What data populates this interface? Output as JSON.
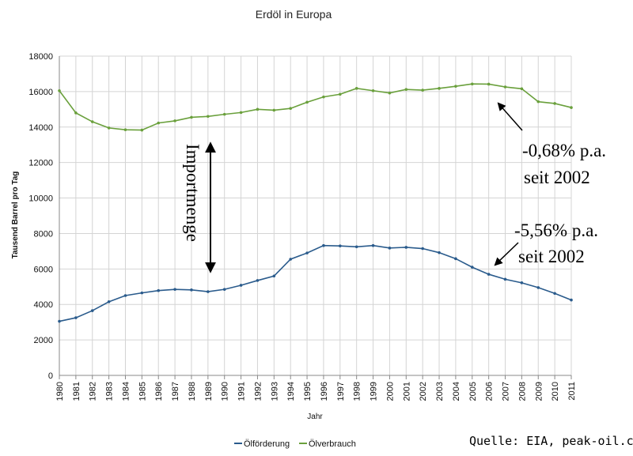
{
  "chart_data": {
    "type": "line",
    "title": "Erdöl in Europa",
    "xlabel": "Jahr",
    "ylabel": "Tausend Barrel pro Tag",
    "ylim": [
      0,
      18000
    ],
    "yticks": [
      0,
      2000,
      4000,
      6000,
      8000,
      10000,
      12000,
      14000,
      16000,
      18000
    ],
    "grid": true,
    "legend_position": "bottom",
    "categories": [
      "1980",
      "1981",
      "1982",
      "1983",
      "1984",
      "1985",
      "1986",
      "1987",
      "1988",
      "1989",
      "1990",
      "1991",
      "1992",
      "1993",
      "1994",
      "1995",
      "1996",
      "1997",
      "1998",
      "1999",
      "2000",
      "2001",
      "2002",
      "2003",
      "2004",
      "2005",
      "2006",
      "2007",
      "2008",
      "2009",
      "2010",
      "2011"
    ],
    "series": [
      {
        "name": "Ölförderung",
        "color": "#2a5b8c",
        "values": [
          3050,
          3250,
          3650,
          4150,
          4500,
          4650,
          4780,
          4850,
          4820,
          4720,
          4850,
          5080,
          5350,
          5600,
          6550,
          6900,
          7320,
          7300,
          7250,
          7320,
          7180,
          7220,
          7150,
          6920,
          6580,
          6100,
          5700,
          5420,
          5220,
          4950,
          4620,
          4250
        ]
      },
      {
        "name": "Ölverbrauch",
        "color": "#6aa03c",
        "values": [
          16050,
          14800,
          14300,
          13950,
          13850,
          13830,
          14230,
          14350,
          14550,
          14600,
          14720,
          14820,
          15000,
          14950,
          15050,
          15400,
          15700,
          15850,
          16180,
          16050,
          15920,
          16120,
          16080,
          16180,
          16300,
          16430,
          16420,
          16260,
          16160,
          15430,
          15330,
          15100
        ]
      }
    ],
    "annotations": [
      {
        "text": "Importmenge"
      },
      {
        "text": "-0,68% p.a."
      },
      {
        "text": "seit 2002"
      },
      {
        "text": "-5,56% p.a."
      },
      {
        "text": "seit 2002"
      }
    ],
    "source": "Quelle: EIA, peak-oil.com"
  }
}
